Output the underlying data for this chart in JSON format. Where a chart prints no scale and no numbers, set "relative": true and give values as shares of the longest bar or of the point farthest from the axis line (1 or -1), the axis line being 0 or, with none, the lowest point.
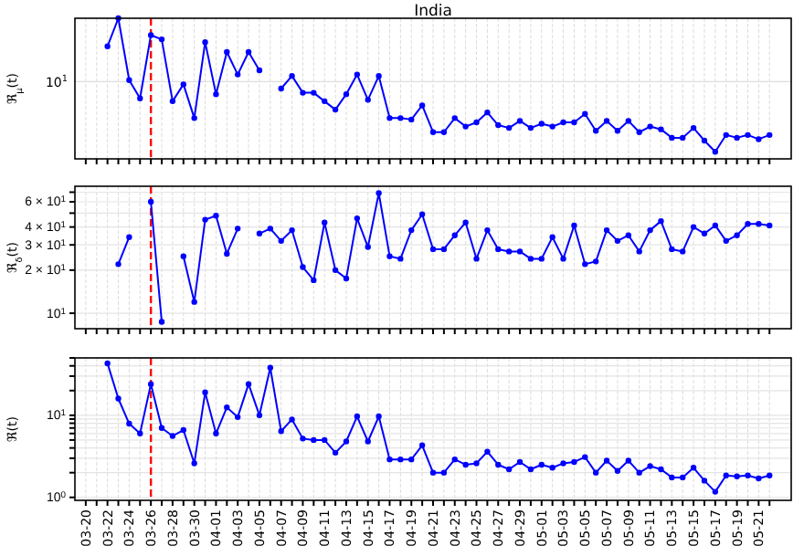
{
  "chart_data": [
    {
      "type": "line",
      "title": "India",
      "ylabel": "ℜ$_{μ}$(t)",
      "relative": true,
      "tick_labels": false,
      "grid": true,
      "marker": "circle",
      "line_style": "solid",
      "x": [
        "--03-22",
        "--03-23",
        "--03-24",
        "--03-25",
        "--03-26",
        "--03-27",
        "--03-28",
        "--03-29",
        "--03-30",
        "--03-31",
        "--04-01",
        "--04-02",
        "--04-03",
        "--04-04",
        "--04-05",
        "--04-06",
        "--04-07",
        "--04-08",
        "--04-09",
        "--04-10",
        "--04-11",
        "--04-12",
        "--04-13",
        "--04-14",
        "--04-15",
        "--04-16",
        "--04-17",
        "--04-18",
        "--04-19",
        "--04-20",
        "--04-21",
        "--04-22",
        "--04-23",
        "--04-24",
        "--04-25",
        "--04-26",
        "--04-27",
        "--04-28",
        "--04-29",
        "--04-30",
        "--05-01",
        "--05-02",
        "--05-03",
        "--05-04",
        "--05-05",
        "--05-06",
        "--05-07",
        "--05-08",
        "--05-09",
        "--05-10",
        "--05-11",
        "--05-12",
        "--05-13",
        "--05-14",
        "--05-15",
        "--05-16",
        "--05-17",
        "--05-18",
        "--05-19",
        "--05-20",
        "--05-21",
        "--05-22"
      ],
      "series": [
        {
          "color": "#0000ff",
          "values": [
            0.8,
            1.0,
            0.56,
            0.43,
            0.88,
            0.85,
            0.41,
            0.53,
            0.29,
            0.83,
            0.46,
            0.76,
            0.6,
            0.76,
            0.63,
            null,
            0.5,
            0.59,
            0.47,
            0.47,
            0.41,
            0.35,
            0.46,
            0.6,
            0.42,
            0.59,
            0.29,
            0.29,
            0.28,
            0.38,
            0.19,
            0.19,
            0.29,
            0.23,
            0.26,
            0.33,
            0.24,
            0.22,
            0.27,
            0.22,
            0.25,
            0.23,
            0.26,
            0.26,
            0.32,
            0.2,
            0.27,
            0.2,
            0.27,
            0.19,
            0.23,
            0.21,
            0.15,
            0.15,
            0.22,
            0.13,
            0.05,
            0.17,
            0.15,
            0.17,
            0.14,
            0.17
          ]
        }
      ],
      "xlim": [
        "--03-19",
        "--05-24"
      ],
      "xticks": [
        {
          "value": "--03-20",
          "label": null
        },
        {
          "value": "--03-21",
          "label": null
        },
        {
          "value": "--03-22",
          "label": null
        },
        {
          "value": "--03-23",
          "label": null
        },
        {
          "value": "--03-24",
          "label": null
        },
        {
          "value": "--03-25",
          "label": null
        },
        {
          "value": "--03-26",
          "label": null
        },
        {
          "value": "--03-27",
          "label": null
        },
        {
          "value": "--03-28",
          "label": null
        },
        {
          "value": "--03-29",
          "label": null
        },
        {
          "value": "--03-30",
          "label": null
        },
        {
          "value": "--03-31",
          "label": null
        },
        {
          "value": "--04-01",
          "label": null
        },
        {
          "value": "--04-02",
          "label": null
        },
        {
          "value": "--04-03",
          "label": null
        },
        {
          "value": "--04-04",
          "label": null
        },
        {
          "value": "--04-05",
          "label": null
        },
        {
          "value": "--04-06",
          "label": null
        },
        {
          "value": "--04-07",
          "label": null
        },
        {
          "value": "--04-08",
          "label": null
        },
        {
          "value": "--04-09",
          "label": null
        },
        {
          "value": "--04-10",
          "label": null
        },
        {
          "value": "--04-11",
          "label": null
        },
        {
          "value": "--04-12",
          "label": null
        },
        {
          "value": "--04-13",
          "label": null
        },
        {
          "value": "--04-14",
          "label": null
        },
        {
          "value": "--04-15",
          "label": null
        },
        {
          "value": "--04-16",
          "label": null
        },
        {
          "value": "--04-17",
          "label": null
        },
        {
          "value": "--04-18",
          "label": null
        },
        {
          "value": "--04-19",
          "label": null
        },
        {
          "value": "--04-20",
          "label": null
        },
        {
          "value": "--04-21",
          "label": null
        },
        {
          "value": "--04-22",
          "label": null
        },
        {
          "value": "--04-23",
          "label": null
        },
        {
          "value": "--04-24",
          "label": null
        },
        {
          "value": "--04-25",
          "label": null
        },
        {
          "value": "--04-26",
          "label": null
        },
        {
          "value": "--04-27",
          "label": null
        },
        {
          "value": "--04-28",
          "label": null
        },
        {
          "value": "--04-29",
          "label": null
        },
        {
          "value": "--04-30",
          "label": null
        },
        {
          "value": "--05-01",
          "label": null
        },
        {
          "value": "--05-02",
          "label": null
        },
        {
          "value": "--05-03",
          "label": null
        },
        {
          "value": "--05-04",
          "label": null
        },
        {
          "value": "--05-05",
          "label": null
        },
        {
          "value": "--05-06",
          "label": null
        },
        {
          "value": "--05-07",
          "label": null
        },
        {
          "value": "--05-08",
          "label": null
        },
        {
          "value": "--05-09",
          "label": null
        },
        {
          "value": "--05-10",
          "label": null
        },
        {
          "value": "--05-11",
          "label": null
        },
        {
          "value": "--05-12",
          "label": null
        },
        {
          "value": "--05-13",
          "label": null
        },
        {
          "value": "--05-14",
          "label": null
        },
        {
          "value": "--05-15",
          "label": null
        },
        {
          "value": "--05-16",
          "label": null
        },
        {
          "value": "--05-17",
          "label": null
        },
        {
          "value": "--05-18",
          "label": null
        },
        {
          "value": "--05-19",
          "label": null
        },
        {
          "value": "--05-20",
          "label": null
        },
        {
          "value": "--05-21",
          "label": null
        },
        {
          "value": "--05-22",
          "label": null
        }
      ],
      "ref_lines": [
        {
          "axis": "x",
          "value": "--03-26",
          "color": "#ff0000",
          "line_style": "dashed"
        },
        {
          "axis": "y",
          "value": 0.55,
          "label": "10$^{1}$",
          "color": "#dddddd",
          "line_style": "solid"
        }
      ]
    },
    {
      "type": "line",
      "ylabel": "ℜ$_{δ}$(t)",
      "log": "y",
      "tick_labels": "y",
      "grid": true,
      "marker": "circle",
      "line_style": "solid",
      "x": [
        "--03-23",
        "--03-24",
        "--03-25",
        "--03-26",
        "--03-27",
        "--03-28",
        "--03-29",
        "--03-30",
        "--03-31",
        "--04-01",
        "--04-02",
        "--04-03",
        "--04-04",
        "--04-05",
        "--04-06",
        "--04-07",
        "--04-08",
        "--04-09",
        "--04-10",
        "--04-11",
        "--04-12",
        "--04-13",
        "--04-14",
        "--04-15",
        "--04-16",
        "--04-17",
        "--04-18",
        "--04-19",
        "--04-20",
        "--04-21",
        "--04-22",
        "--04-23",
        "--04-24",
        "--04-25",
        "--04-26",
        "--04-27",
        "--04-28",
        "--04-29",
        "--04-30",
        "--05-01",
        "--05-02",
        "--05-03",
        "--05-04",
        "--05-05",
        "--05-06",
        "--05-07",
        "--05-08",
        "--05-09",
        "--05-10",
        "--05-11",
        "--05-12",
        "--05-13",
        "--05-14",
        "--05-15",
        "--05-16",
        "--05-17",
        "--05-18",
        "--05-19",
        "--05-20",
        "--05-21",
        "--05-22"
      ],
      "series": [
        {
          "color": "#0000ff",
          "values": [
            22,
            34,
            null,
            60,
            8.7,
            null,
            25,
            12,
            45,
            48,
            26,
            39,
            null,
            36,
            39,
            32,
            38,
            21,
            17,
            43,
            20,
            17.5,
            46,
            29,
            69,
            25,
            24,
            38,
            49,
            28,
            28,
            35,
            43,
            24,
            38,
            28,
            27,
            27,
            24,
            24,
            34,
            24,
            41,
            22,
            23,
            38,
            32,
            35,
            27,
            38,
            44,
            28,
            27,
            40,
            36,
            41,
            32,
            35,
            42,
            42,
            41
          ]
        }
      ],
      "xlim": [
        "--03-19",
        "--05-24"
      ],
      "xticks": [
        {
          "value": "--03-20",
          "label": null
        },
        {
          "value": "--03-21",
          "label": null
        },
        {
          "value": "--03-22",
          "label": null
        },
        {
          "value": "--03-23",
          "label": null
        },
        {
          "value": "--03-24",
          "label": null
        },
        {
          "value": "--03-25",
          "label": null
        },
        {
          "value": "--03-26",
          "label": null
        },
        {
          "value": "--03-27",
          "label": null
        },
        {
          "value": "--03-28",
          "label": null
        },
        {
          "value": "--03-29",
          "label": null
        },
        {
          "value": "--03-30",
          "label": null
        },
        {
          "value": "--03-31",
          "label": null
        },
        {
          "value": "--04-01",
          "label": null
        },
        {
          "value": "--04-02",
          "label": null
        },
        {
          "value": "--04-03",
          "label": null
        },
        {
          "value": "--04-04",
          "label": null
        },
        {
          "value": "--04-05",
          "label": null
        },
        {
          "value": "--04-06",
          "label": null
        },
        {
          "value": "--04-07",
          "label": null
        },
        {
          "value": "--04-08",
          "label": null
        },
        {
          "value": "--04-09",
          "label": null
        },
        {
          "value": "--04-10",
          "label": null
        },
        {
          "value": "--04-11",
          "label": null
        },
        {
          "value": "--04-12",
          "label": null
        },
        {
          "value": "--04-13",
          "label": null
        },
        {
          "value": "--04-14",
          "label": null
        },
        {
          "value": "--04-15",
          "label": null
        },
        {
          "value": "--04-16",
          "label": null
        },
        {
          "value": "--04-17",
          "label": null
        },
        {
          "value": "--04-18",
          "label": null
        },
        {
          "value": "--04-19",
          "label": null
        },
        {
          "value": "--04-20",
          "label": null
        },
        {
          "value": "--04-21",
          "label": null
        },
        {
          "value": "--04-22",
          "label": null
        },
        {
          "value": "--04-23",
          "label": null
        },
        {
          "value": "--04-24",
          "label": null
        },
        {
          "value": "--04-25",
          "label": null
        },
        {
          "value": "--04-26",
          "label": null
        },
        {
          "value": "--04-27",
          "label": null
        },
        {
          "value": "--04-28",
          "label": null
        },
        {
          "value": "--04-29",
          "label": null
        },
        {
          "value": "--04-30",
          "label": null
        },
        {
          "value": "--05-01",
          "label": null
        },
        {
          "value": "--05-02",
          "label": null
        },
        {
          "value": "--05-03",
          "label": null
        },
        {
          "value": "--05-04",
          "label": null
        },
        {
          "value": "--05-05",
          "label": null
        },
        {
          "value": "--05-06",
          "label": null
        },
        {
          "value": "--05-07",
          "label": null
        },
        {
          "value": "--05-08",
          "label": null
        },
        {
          "value": "--05-09",
          "label": null
        },
        {
          "value": "--05-10",
          "label": null
        },
        {
          "value": "--05-11",
          "label": null
        },
        {
          "value": "--05-12",
          "label": null
        },
        {
          "value": "--05-13",
          "label": null
        },
        {
          "value": "--05-14",
          "label": null
        },
        {
          "value": "--05-15",
          "label": null
        },
        {
          "value": "--05-16",
          "label": null
        },
        {
          "value": "--05-17",
          "label": null
        },
        {
          "value": "--05-18",
          "label": null
        },
        {
          "value": "--05-19",
          "label": null
        },
        {
          "value": "--05-20",
          "label": null
        },
        {
          "value": "--05-21",
          "label": null
        },
        {
          "value": "--05-22",
          "label": null
        }
      ],
      "ylim": [
        7.8,
        77
      ],
      "yticks": [
        {
          "value": 10,
          "label": "10$^{1}$"
        },
        {
          "value": 20,
          "label": "2 × 10$^{1}$"
        },
        {
          "value": 30,
          "label": "3 × 10$^{1}$"
        },
        {
          "value": 40,
          "label": "4 × 10$^{1}$"
        },
        {
          "value": 50,
          "label": null
        },
        {
          "value": 60,
          "label": "6 × 10$^{1}$"
        },
        {
          "value": 70,
          "label": null
        }
      ],
      "ref_lines": [
        {
          "axis": "x",
          "value": "--03-26",
          "color": "#ff0000",
          "line_style": "dashed"
        }
      ]
    },
    {
      "type": "line",
      "ylabel": "ℜ(t)",
      "log": "y",
      "grid": true,
      "marker": "circle",
      "line_style": "solid",
      "x": [
        "--03-22",
        "--03-23",
        "--03-24",
        "--03-25",
        "--03-26",
        "--03-27",
        "--03-28",
        "--03-29",
        "--03-30",
        "--03-31",
        "--04-01",
        "--04-02",
        "--04-03",
        "--04-04",
        "--04-05",
        "--04-06",
        "--04-07",
        "--04-08",
        "--04-09",
        "--04-10",
        "--04-11",
        "--04-12",
        "--04-13",
        "--04-14",
        "--04-15",
        "--04-16",
        "--04-17",
        "--04-18",
        "--04-19",
        "--04-20",
        "--04-21",
        "--04-22",
        "--04-23",
        "--04-24",
        "--04-25",
        "--04-26",
        "--04-27",
        "--04-28",
        "--04-29",
        "--04-30",
        "--05-01",
        "--05-02",
        "--05-03",
        "--05-04",
        "--05-05",
        "--05-06",
        "--05-07",
        "--05-08",
        "--05-09",
        "--05-10",
        "--05-11",
        "--05-12",
        "--05-13",
        "--05-14",
        "--05-15",
        "--05-16",
        "--05-17",
        "--05-18",
        "--05-19",
        "--05-20",
        "--05-21",
        "--05-22"
      ],
      "series": [
        {
          "color": "#0000ff",
          "values": [
            43,
            16,
            7.9,
            6.0,
            24,
            7.0,
            5.6,
            6.6,
            2.6,
            19,
            6.0,
            12.5,
            9.5,
            24,
            10,
            38,
            6.4,
            8.9,
            5.2,
            5.0,
            5.0,
            3.5,
            4.8,
            9.7,
            4.8,
            9.7,
            2.9,
            2.9,
            2.9,
            4.3,
            2.0,
            2.0,
            2.9,
            2.5,
            2.6,
            3.6,
            2.5,
            2.2,
            2.7,
            2.2,
            2.5,
            2.3,
            2.6,
            2.7,
            3.1,
            2.0,
            2.8,
            2.1,
            2.8,
            2.0,
            2.4,
            2.2,
            1.75,
            1.75,
            2.3,
            1.6,
            1.17,
            1.85,
            1.8,
            1.85,
            1.7,
            1.85
          ]
        }
      ],
      "xlim": [
        "--03-19",
        "--05-24"
      ],
      "xticks": [
        {
          "value": "--03-20",
          "label": "03-20"
        },
        {
          "value": "--03-21",
          "label": null
        },
        {
          "value": "--03-22",
          "label": "03-22"
        },
        {
          "value": "--03-23",
          "label": null
        },
        {
          "value": "--03-24",
          "label": "03-24"
        },
        {
          "value": "--03-25",
          "label": null
        },
        {
          "value": "--03-26",
          "label": "03-26"
        },
        {
          "value": "--03-27",
          "label": null
        },
        {
          "value": "--03-28",
          "label": "03-28"
        },
        {
          "value": "--03-29",
          "label": null
        },
        {
          "value": "--03-30",
          "label": "03-30"
        },
        {
          "value": "--03-31",
          "label": null
        },
        {
          "value": "--04-01",
          "label": "04-01"
        },
        {
          "value": "--04-02",
          "label": null
        },
        {
          "value": "--04-03",
          "label": "04-03"
        },
        {
          "value": "--04-04",
          "label": null
        },
        {
          "value": "--04-05",
          "label": "04-05"
        },
        {
          "value": "--04-06",
          "label": null
        },
        {
          "value": "--04-07",
          "label": "04-07"
        },
        {
          "value": "--04-08",
          "label": null
        },
        {
          "value": "--04-09",
          "label": "04-09"
        },
        {
          "value": "--04-10",
          "label": null
        },
        {
          "value": "--04-11",
          "label": "04-11"
        },
        {
          "value": "--04-12",
          "label": null
        },
        {
          "value": "--04-13",
          "label": "04-13"
        },
        {
          "value": "--04-14",
          "label": null
        },
        {
          "value": "--04-15",
          "label": "04-15"
        },
        {
          "value": "--04-16",
          "label": null
        },
        {
          "value": "--04-17",
          "label": "04-17"
        },
        {
          "value": "--04-18",
          "label": null
        },
        {
          "value": "--04-19",
          "label": "04-19"
        },
        {
          "value": "--04-20",
          "label": null
        },
        {
          "value": "--04-21",
          "label": "04-21"
        },
        {
          "value": "--04-22",
          "label": null
        },
        {
          "value": "--04-23",
          "label": "04-23"
        },
        {
          "value": "--04-24",
          "label": null
        },
        {
          "value": "--04-25",
          "label": "04-25"
        },
        {
          "value": "--04-26",
          "label": null
        },
        {
          "value": "--04-27",
          "label": "04-27"
        },
        {
          "value": "--04-28",
          "label": null
        },
        {
          "value": "--04-29",
          "label": "04-29"
        },
        {
          "value": "--04-30",
          "label": null
        },
        {
          "value": "--05-01",
          "label": "05-01"
        },
        {
          "value": "--05-02",
          "label": null
        },
        {
          "value": "--05-03",
          "label": "05-03"
        },
        {
          "value": "--05-04",
          "label": null
        },
        {
          "value": "--05-05",
          "label": "05-05"
        },
        {
          "value": "--05-06",
          "label": null
        },
        {
          "value": "--05-07",
          "label": "05-07"
        },
        {
          "value": "--05-08",
          "label": null
        },
        {
          "value": "--05-09",
          "label": "05-09"
        },
        {
          "value": "--05-10",
          "label": null
        },
        {
          "value": "--05-11",
          "label": "05-11"
        },
        {
          "value": "--05-12",
          "label": null
        },
        {
          "value": "--05-13",
          "label": "05-13"
        },
        {
          "value": "--05-14",
          "label": null
        },
        {
          "value": "--05-15",
          "label": "05-15"
        },
        {
          "value": "--05-16",
          "label": null
        },
        {
          "value": "--05-17",
          "label": "05-17"
        },
        {
          "value": "--05-18",
          "label": null
        },
        {
          "value": "--05-19",
          "label": "05-19"
        },
        {
          "value": "--05-20",
          "label": null
        },
        {
          "value": "--05-21",
          "label": "05-21"
        },
        {
          "value": "--05-22",
          "label": null
        }
      ],
      "ylim": [
        0.92,
        50
      ],
      "yticks": [
        {
          "value": 1,
          "label": "10$^{0}$"
        },
        {
          "value": 2,
          "label": null
        },
        {
          "value": 3,
          "label": null
        },
        {
          "value": 4,
          "label": null
        },
        {
          "value": 5,
          "label": null
        },
        {
          "value": 6,
          "label": null
        },
        {
          "value": 7,
          "label": null
        },
        {
          "value": 8,
          "label": null
        },
        {
          "value": 9,
          "label": null
        },
        {
          "value": 10,
          "label": "10$^{1}$"
        },
        {
          "value": 20,
          "label": null
        },
        {
          "value": 30,
          "label": null
        },
        {
          "value": 40,
          "label": null
        },
        {
          "value": 50,
          "label": null
        }
      ],
      "ref_lines": [
        {
          "axis": "x",
          "value": "--03-26",
          "color": "#ff0000",
          "line_style": "dashed"
        }
      ]
    }
  ]
}
